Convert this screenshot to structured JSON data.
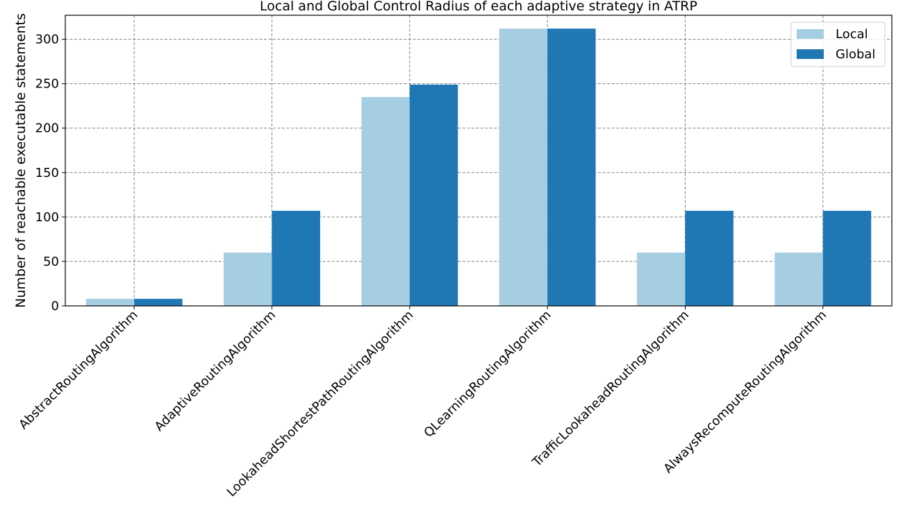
{
  "chart_data": {
    "type": "bar",
    "title": "Local and Global Control Radius of each adaptive strategy in ATRP",
    "xlabel": "",
    "ylabel": "Number of reachable executable statements",
    "categories": [
      "AbstractRoutingAlgorithm",
      "AdaptiveRoutingAlgorithm",
      "LookaheadShortestPathRoutingAlgorithm",
      "QLearningRoutingAlgorithm",
      "TrafficLookaheadRoutingAlgorithm",
      "AlwaysRecomputeRoutingAlgorithm"
    ],
    "series": [
      {
        "name": "Local",
        "color": "#a6cee3",
        "values": [
          8,
          60,
          235,
          312,
          60,
          60
        ]
      },
      {
        "name": "Global",
        "color": "#1f77b4",
        "values": [
          8,
          107,
          249,
          312,
          107,
          107
        ]
      }
    ],
    "ylim": [
      0,
      327
    ],
    "yticks": [
      0,
      50,
      100,
      150,
      200,
      250,
      300
    ],
    "grid": true,
    "legend_position": "top-right"
  }
}
